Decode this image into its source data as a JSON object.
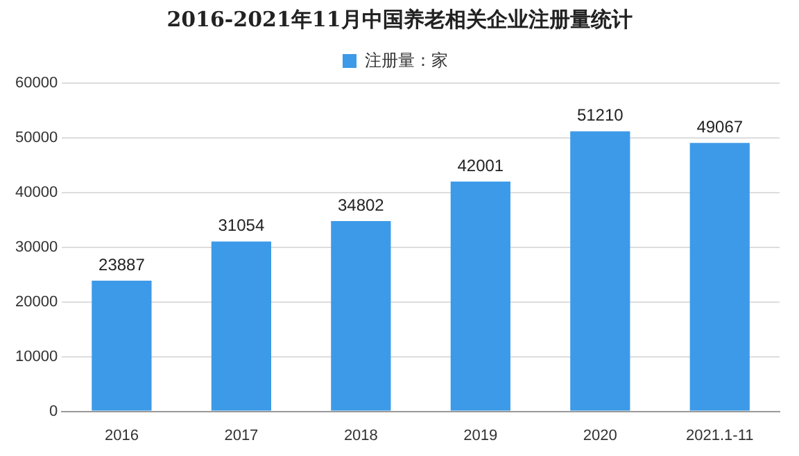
{
  "chart_data": {
    "type": "bar",
    "title": "2016-2021年11月中国养老相关企业注册量统计",
    "categories": [
      "2016",
      "2017",
      "2018",
      "2019",
      "2020",
      "2021.1-11"
    ],
    "series": [
      {
        "name": "注册量：家",
        "color": "#3d9ae8",
        "values": [
          23887,
          31054,
          34802,
          42001,
          51210,
          49067
        ]
      }
    ],
    "ylim": [
      0,
      60000
    ],
    "yticks": [
      0,
      10000,
      20000,
      30000,
      40000,
      50000,
      60000
    ],
    "grid": "y",
    "legend": "top",
    "data_labels": true
  }
}
